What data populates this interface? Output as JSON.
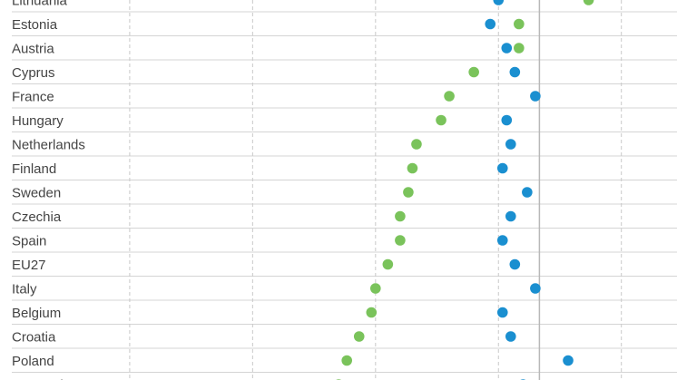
{
  "chart_data": {
    "type": "scatter",
    "title": "",
    "xlabel": "",
    "ylabel": "",
    "xlim": [
      -12,
      4
    ],
    "x_gridlines": [
      -10,
      -7,
      -4,
      -1,
      2
    ],
    "zero_line": 0,
    "grid": true,
    "colors": {
      "green": "#7ac35b",
      "blue": "#1a8fd0"
    },
    "categories": [
      "Lithuania",
      "Estonia",
      "Austria",
      "Cyprus",
      "France",
      "Hungary",
      "Netherlands",
      "Finland",
      "Sweden",
      "Czechia",
      "Spain",
      "EU27",
      "Italy",
      "Belgium",
      "Croatia",
      "Poland",
      "Denmark"
    ],
    "series": [
      {
        "color": "#7ac35b",
        "values": [
          1.2,
          -0.5,
          -0.5,
          -1.6,
          -2.2,
          -2.4,
          -3.0,
          -3.1,
          -3.2,
          -3.4,
          -3.4,
          -3.7,
          -4.0,
          -4.1,
          -4.4,
          -4.7,
          -4.9
        ]
      },
      {
        "color": "#1a8fd0",
        "values": [
          -1.0,
          -1.2,
          -0.8,
          -0.6,
          -0.1,
          -0.8,
          -0.7,
          -0.9,
          -0.3,
          -0.7,
          -0.9,
          -0.6,
          -0.1,
          -0.9,
          -0.7,
          0.7,
          -0.4
        ]
      }
    ]
  }
}
